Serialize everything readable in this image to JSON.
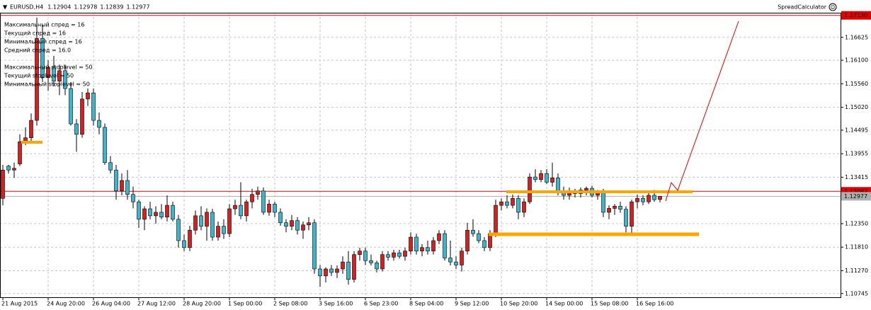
{
  "chart_data": {
    "type": "candlestick",
    "title": "EURUSD,H4",
    "quote": [
      1.12904,
      1.12978,
      1.12839,
      1.12977
    ],
    "indicator": "SpreadCalculator",
    "annotations": [
      "Максимальный спред = 16",
      "Текущий спред = 16",
      "Минимальный спред = 16",
      "Средний спред = 16.0",
      "Максимальный stoplevel = 50",
      "Текущий stoplevel = 50",
      "Минимальный stoplevel = 50"
    ],
    "up_color": "#d42020",
    "down_color": "#3fb5cc",
    "grid": true,
    "ylim": [
      1.1066,
      1.1719
    ],
    "yticks": [
      1.16625,
      {
        "value": 1.161,
        "label": "1.16100"
      },
      {
        "value": 1.1556,
        "label": "1.15560"
      },
      {
        "value": 1.1502,
        "label": "1.15020"
      },
      1.14495,
      1.13955,
      1.13415,
      {
        "value": 1.1235,
        "label": "1.12350"
      },
      {
        "value": 1.1181,
        "label": "1.11810"
      },
      {
        "value": 1.1127,
        "label": "1.11270"
      },
      1.10745
    ],
    "price_lines": [
      {
        "value": 1.1713,
        "label": "1.17130",
        "color": "#e00000"
      },
      {
        "value": 1.13092,
        "color": "#e00000"
      },
      {
        "value": 1.12977,
        "color": "#b0b0b0"
      }
    ],
    "categories": [
      "21 Aug 2015",
      null,
      null,
      null,
      null,
      null,
      null,
      null,
      "24 Aug 20:00",
      null,
      null,
      null,
      null,
      null,
      null,
      null,
      "26 Aug 04:00",
      null,
      null,
      null,
      null,
      null,
      null,
      null,
      "27 Aug 12:00",
      null,
      null,
      null,
      null,
      null,
      null,
      null,
      "28 Aug 20:00",
      null,
      null,
      null,
      null,
      null,
      null,
      null,
      "1 Sep 00:00",
      null,
      null,
      null,
      null,
      null,
      null,
      null,
      "2 Sep 08:00",
      null,
      null,
      null,
      null,
      null,
      null,
      null,
      "3 Sep 16:00",
      null,
      null,
      null,
      null,
      null,
      null,
      null,
      "6 Sep 23:00",
      null,
      null,
      null,
      null,
      null,
      null,
      null,
      "8 Sep 04:00",
      null,
      null,
      null,
      null,
      null,
      null,
      null,
      "9 Sep 12:00",
      null,
      null,
      null,
      null,
      null,
      null,
      null,
      "10 Sep 20:00",
      null,
      null,
      null,
      null,
      null,
      null,
      null,
      "14 Sep 00:00",
      null,
      null,
      null,
      null,
      null,
      null,
      null,
      "15 Sep 08:00",
      null,
      null,
      null,
      null,
      null,
      null,
      null,
      "16 Sep 16:00",
      null,
      null,
      null,
      null
    ],
    "candles": [
      [
        1.1293,
        1.137,
        1.1277,
        1.1358
      ],
      [
        1.1367,
        1.137,
        1.135,
        1.1358
      ],
      [
        1.1358,
        1.1375,
        1.134,
        1.1362
      ],
      [
        1.1372,
        1.144,
        1.1367,
        1.1423
      ],
      [
        1.1423,
        1.1456,
        1.1415,
        1.1432
      ],
      [
        1.1432,
        1.1488,
        1.1423,
        1.1472
      ],
      [
        1.1472,
        1.1708,
        1.146,
        1.166
      ],
      [
        1.166,
        1.169,
        1.156,
        1.157
      ],
      [
        1.157,
        1.161,
        1.154,
        1.1594
      ],
      [
        1.1594,
        1.162,
        1.155,
        1.1562
      ],
      [
        1.1562,
        1.16,
        1.153,
        1.1586
      ],
      [
        1.1586,
        1.16,
        1.153,
        1.1545
      ],
      [
        1.1545,
        1.156,
        1.146,
        1.1464
      ],
      [
        1.1464,
        1.1475,
        1.14,
        1.144
      ],
      [
        1.144,
        1.1537,
        1.1432,
        1.1521
      ],
      [
        1.1521,
        1.1545,
        1.1505,
        1.1535
      ],
      [
        1.1535,
        1.1545,
        1.146,
        1.1472
      ],
      [
        1.1472,
        1.149,
        1.144,
        1.1456
      ],
      [
        1.1456,
        1.1465,
        1.137,
        1.1375
      ],
      [
        1.1375,
        1.139,
        1.135,
        1.1358
      ],
      [
        1.1358,
        1.137,
        1.129,
        1.131
      ],
      [
        1.131,
        1.135,
        1.13,
        1.1334
      ],
      [
        1.1334,
        1.1358,
        1.129,
        1.1302
      ],
      [
        1.1302,
        1.132,
        1.127,
        1.1285
      ],
      [
        1.1285,
        1.129,
        1.1225,
        1.1245
      ],
      [
        1.1245,
        1.1275,
        1.122,
        1.1269
      ],
      [
        1.1269,
        1.1285,
        1.1245,
        1.1253
      ],
      [
        1.1253,
        1.1275,
        1.1235,
        1.1261
      ],
      [
        1.1261,
        1.128,
        1.1245,
        1.125
      ],
      [
        1.125,
        1.13,
        1.124,
        1.1277
      ],
      [
        1.1277,
        1.1285,
        1.124,
        1.1245
      ],
      [
        1.1245,
        1.1255,
        1.118,
        1.1196
      ],
      [
        1.1196,
        1.121,
        1.1172,
        1.118
      ],
      [
        1.118,
        1.123,
        1.1172,
        1.122
      ],
      [
        1.122,
        1.1265,
        1.121,
        1.1253
      ],
      [
        1.1253,
        1.1275,
        1.122,
        1.1229
      ],
      [
        1.1229,
        1.127,
        1.1196,
        1.1261
      ],
      [
        1.1261,
        1.1269,
        1.1196,
        1.1204
      ],
      [
        1.1204,
        1.124,
        1.1196,
        1.1229
      ],
      [
        1.1229,
        1.1245,
        1.12,
        1.1212
      ],
      [
        1.1212,
        1.128,
        1.1204,
        1.1269
      ],
      [
        1.1269,
        1.129,
        1.1255,
        1.1277
      ],
      [
        1.1277,
        1.133,
        1.1245,
        1.1253
      ],
      [
        1.1253,
        1.129,
        1.124,
        1.1285
      ],
      [
        1.1285,
        1.1315,
        1.127,
        1.1302
      ],
      [
        1.1302,
        1.132,
        1.129,
        1.131
      ],
      [
        1.131,
        1.1318,
        1.1255,
        1.1261
      ],
      [
        1.1261,
        1.129,
        1.1253,
        1.128
      ],
      [
        1.128,
        1.1285,
        1.125,
        1.1261
      ],
      [
        1.1261,
        1.127,
        1.123,
        1.1237
      ],
      [
        1.1237,
        1.1245,
        1.1215,
        1.1229
      ],
      [
        1.1229,
        1.1255,
        1.122,
        1.1242
      ],
      [
        1.1242,
        1.125,
        1.121,
        1.122
      ],
      [
        1.122,
        1.124,
        1.12,
        1.1232
      ],
      [
        1.1232,
        1.125,
        1.122,
        1.1237
      ],
      [
        1.1237,
        1.1245,
        1.112,
        1.1131
      ],
      [
        1.1131,
        1.114,
        1.109,
        1.1115
      ],
      [
        1.1115,
        1.1135,
        1.11,
        1.1131
      ],
      [
        1.1131,
        1.114,
        1.1115,
        1.1123
      ],
      [
        1.1123,
        1.1139,
        1.111,
        1.1131
      ],
      [
        1.1131,
        1.116,
        1.112,
        1.1147
      ],
      [
        1.1147,
        1.1172,
        1.1095,
        1.1107
      ],
      [
        1.1107,
        1.1172,
        1.11,
        1.1164
      ],
      [
        1.1164,
        1.118,
        1.115,
        1.1172
      ],
      [
        1.1172,
        1.118,
        1.114,
        1.115
      ],
      [
        1.115,
        1.1164,
        1.1139,
        1.1145
      ],
      [
        1.1145,
        1.115,
        1.1123,
        1.1131
      ],
      [
        1.1131,
        1.1172,
        1.1125,
        1.1164
      ],
      [
        1.1164,
        1.1172,
        1.115,
        1.1158
      ],
      [
        1.1158,
        1.1175,
        1.115,
        1.1168
      ],
      [
        1.1168,
        1.1175,
        1.1155,
        1.116
      ],
      [
        1.116,
        1.118,
        1.115,
        1.1172
      ],
      [
        1.1172,
        1.1215,
        1.1164,
        1.1204
      ],
      [
        1.1204,
        1.1212,
        1.1164,
        1.1172
      ],
      [
        1.1172,
        1.1188,
        1.116,
        1.118
      ],
      [
        1.118,
        1.1196,
        1.1164,
        1.1172
      ],
      [
        1.1172,
        1.1204,
        1.1164,
        1.1196
      ],
      [
        1.1196,
        1.122,
        1.1188,
        1.1212
      ],
      [
        1.1212,
        1.122,
        1.115,
        1.1156
      ],
      [
        1.1156,
        1.1196,
        1.1139,
        1.1147
      ],
      [
        1.1147,
        1.116,
        1.1131,
        1.114
      ],
      [
        1.114,
        1.118,
        1.1125,
        1.1172
      ],
      [
        1.1172,
        1.1237,
        1.1164,
        1.122
      ],
      [
        1.122,
        1.1245,
        1.1205,
        1.1212
      ],
      [
        1.1212,
        1.122,
        1.119,
        1.1196
      ],
      [
        1.1196,
        1.1204,
        1.1172,
        1.118
      ],
      [
        1.118,
        1.122,
        1.1172,
        1.1212
      ],
      [
        1.1212,
        1.129,
        1.1204,
        1.1277
      ],
      [
        1.1277,
        1.1293,
        1.1265,
        1.1285
      ],
      [
        1.1285,
        1.13,
        1.127,
        1.1277
      ],
      [
        1.1277,
        1.1302,
        1.127,
        1.1293
      ],
      [
        1.1293,
        1.13,
        1.1245,
        1.1261
      ],
      [
        1.1261,
        1.1293,
        1.125,
        1.1285
      ],
      [
        1.1285,
        1.135,
        1.128,
        1.1342
      ],
      [
        1.1342,
        1.136,
        1.133,
        1.1336
      ],
      [
        1.1336,
        1.1358,
        1.133,
        1.135
      ],
      [
        1.135,
        1.136,
        1.1326,
        1.133
      ],
      [
        1.133,
        1.1375,
        1.132,
        1.134
      ],
      [
        1.134,
        1.135,
        1.13,
        1.131
      ],
      [
        1.131,
        1.132,
        1.129,
        1.13
      ],
      [
        1.13,
        1.1318,
        1.129,
        1.131
      ],
      [
        1.131,
        1.1315,
        1.1295,
        1.1304
      ],
      [
        1.1304,
        1.1318,
        1.1295,
        1.1312
      ],
      [
        1.1312,
        1.132,
        1.13,
        1.1316
      ],
      [
        1.1316,
        1.1322,
        1.1295,
        1.13
      ],
      [
        1.13,
        1.1312,
        1.129,
        1.1306
      ],
      [
        1.1306,
        1.1315,
        1.125,
        1.1261
      ],
      [
        1.1261,
        1.1277,
        1.1245,
        1.127
      ],
      [
        1.127,
        1.128,
        1.1255,
        1.1275
      ],
      [
        1.1275,
        1.1285,
        1.126,
        1.1268
      ],
      [
        1.1268,
        1.1275,
        1.1215,
        1.1229
      ],
      [
        1.1229,
        1.129,
        1.1212,
        1.1285
      ],
      [
        1.1285,
        1.1302,
        1.127,
        1.1293
      ],
      [
        1.1293,
        1.13,
        1.1277,
        1.1285
      ],
      [
        1.1285,
        1.131,
        1.128,
        1.13
      ],
      [
        1.13,
        1.1312,
        1.1285,
        1.129
      ],
      [
        1.12904,
        1.12978,
        1.12839,
        1.12977
      ]
    ]
  }
}
